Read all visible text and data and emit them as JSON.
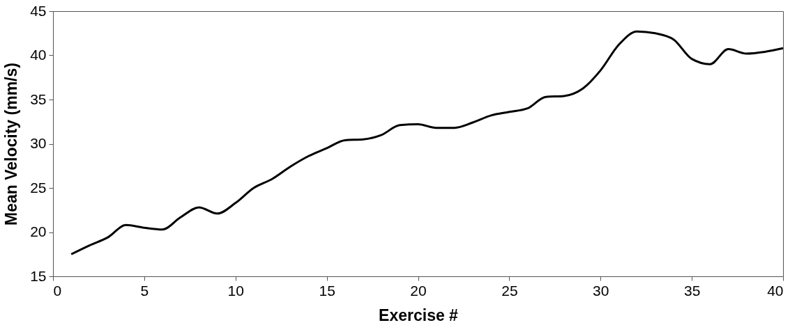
{
  "chart_data": {
    "type": "line",
    "xlabel": "Exercise #",
    "ylabel": "Mean Velocity (mm/s)",
    "x": [
      1,
      2,
      3,
      4,
      5,
      6,
      7,
      8,
      9,
      10,
      11,
      12,
      13,
      14,
      15,
      16,
      17,
      18,
      19,
      20,
      21,
      22,
      23,
      24,
      25,
      26,
      27,
      28,
      29,
      30,
      31,
      32,
      33,
      34,
      35,
      36,
      37,
      38,
      39,
      40
    ],
    "series": [
      {
        "color": "#000000",
        "values": [
          17.5,
          18.5,
          19.4,
          20.8,
          20.5,
          20.3,
          21.7,
          22.8,
          22.1,
          23.3,
          25.0,
          26.0,
          27.4,
          28.6,
          29.5,
          30.4,
          30.5,
          31.0,
          32.1,
          32.2,
          31.8,
          31.8,
          32.4,
          33.2,
          33.6,
          34.0,
          35.3,
          35.4,
          36.2,
          38.3,
          41.2,
          42.7,
          42.5,
          41.8,
          39.6,
          39.0,
          40.7,
          40.2,
          40.4,
          40.8
        ]
      }
    ],
    "xlim": [
      0,
      40
    ],
    "xticks": [
      0,
      5,
      10,
      15,
      20,
      25,
      30,
      35,
      40
    ],
    "ylim": [
      15,
      45
    ],
    "yticks": [
      15,
      20,
      25,
      30,
      35,
      40,
      45
    ],
    "grid": false,
    "marker": "none",
    "line_style": "solid"
  }
}
